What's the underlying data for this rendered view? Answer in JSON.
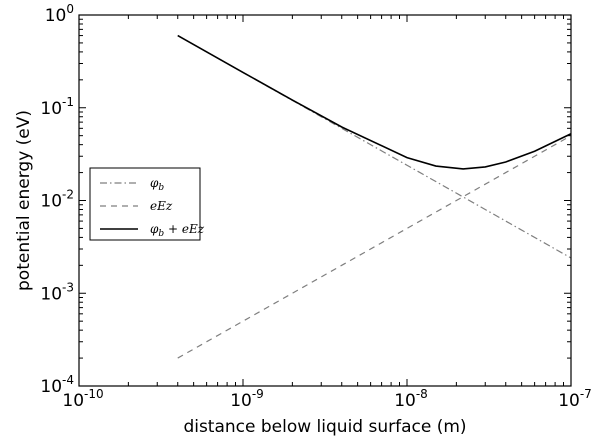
{
  "chart_data": {
    "type": "line",
    "xscale": "log",
    "yscale": "log",
    "xlim": [
      1e-10,
      1e-07
    ],
    "ylim": [
      0.0001,
      1
    ],
    "xlabel": "distance below liquid surface (m)",
    "ylabel": "potential energy (eV)",
    "xticks": [
      {
        "value": 1e-10,
        "base": "10",
        "exp": "-10"
      },
      {
        "value": 1e-09,
        "base": "10",
        "exp": "-9"
      },
      {
        "value": 1e-08,
        "base": "10",
        "exp": "-8"
      },
      {
        "value": 1e-07,
        "base": "10",
        "exp": "-7"
      }
    ],
    "yticks": [
      {
        "value": 0.0001,
        "base": "10",
        "exp": "-4"
      },
      {
        "value": 0.001,
        "base": "10",
        "exp": "-3"
      },
      {
        "value": 0.01,
        "base": "10",
        "exp": "-2"
      },
      {
        "value": 0.1,
        "base": "10",
        "exp": "-1"
      },
      {
        "value": 1,
        "base": "10",
        "exp": "0"
      }
    ],
    "legend_position": "center-left",
    "series": [
      {
        "name": "φ_b",
        "style": "dash-dot",
        "color": "#7f7f7f",
        "x": [
          4e-10,
          1e-09,
          2e-09,
          4e-09,
          1e-08,
          2e-08,
          4e-08,
          1e-07
        ],
        "y": [
          0.6,
          0.24,
          0.12,
          0.06,
          0.024,
          0.012,
          0.006,
          0.0024
        ]
      },
      {
        "name": "eEz",
        "style": "dashed",
        "color": "#7f7f7f",
        "x": [
          4e-10,
          1e-09,
          2e-09,
          4e-09,
          1e-08,
          2e-08,
          4e-08,
          1e-07
        ],
        "y": [
          0.0002,
          0.0005,
          0.001,
          0.002,
          0.005,
          0.01,
          0.02,
          0.05
        ]
      },
      {
        "name": "φ_b + eEz",
        "style": "solid",
        "color": "#000000",
        "x": [
          4e-10,
          1e-09,
          2e-09,
          4e-09,
          1e-08,
          1.5e-08,
          2.2e-08,
          3e-08,
          4e-08,
          6e-08,
          1e-07
        ],
        "y": [
          0.6002,
          0.2405,
          0.121,
          0.062,
          0.029,
          0.0235,
          0.0219,
          0.023,
          0.026,
          0.034,
          0.0524
        ]
      }
    ],
    "legend_labels": [
      {
        "base": "φ",
        "sub": "b",
        "rest": ""
      },
      {
        "base": "eEz",
        "sub": "",
        "rest": ""
      },
      {
        "base": "φ",
        "sub": "b",
        "rest": " + eEz"
      }
    ]
  }
}
